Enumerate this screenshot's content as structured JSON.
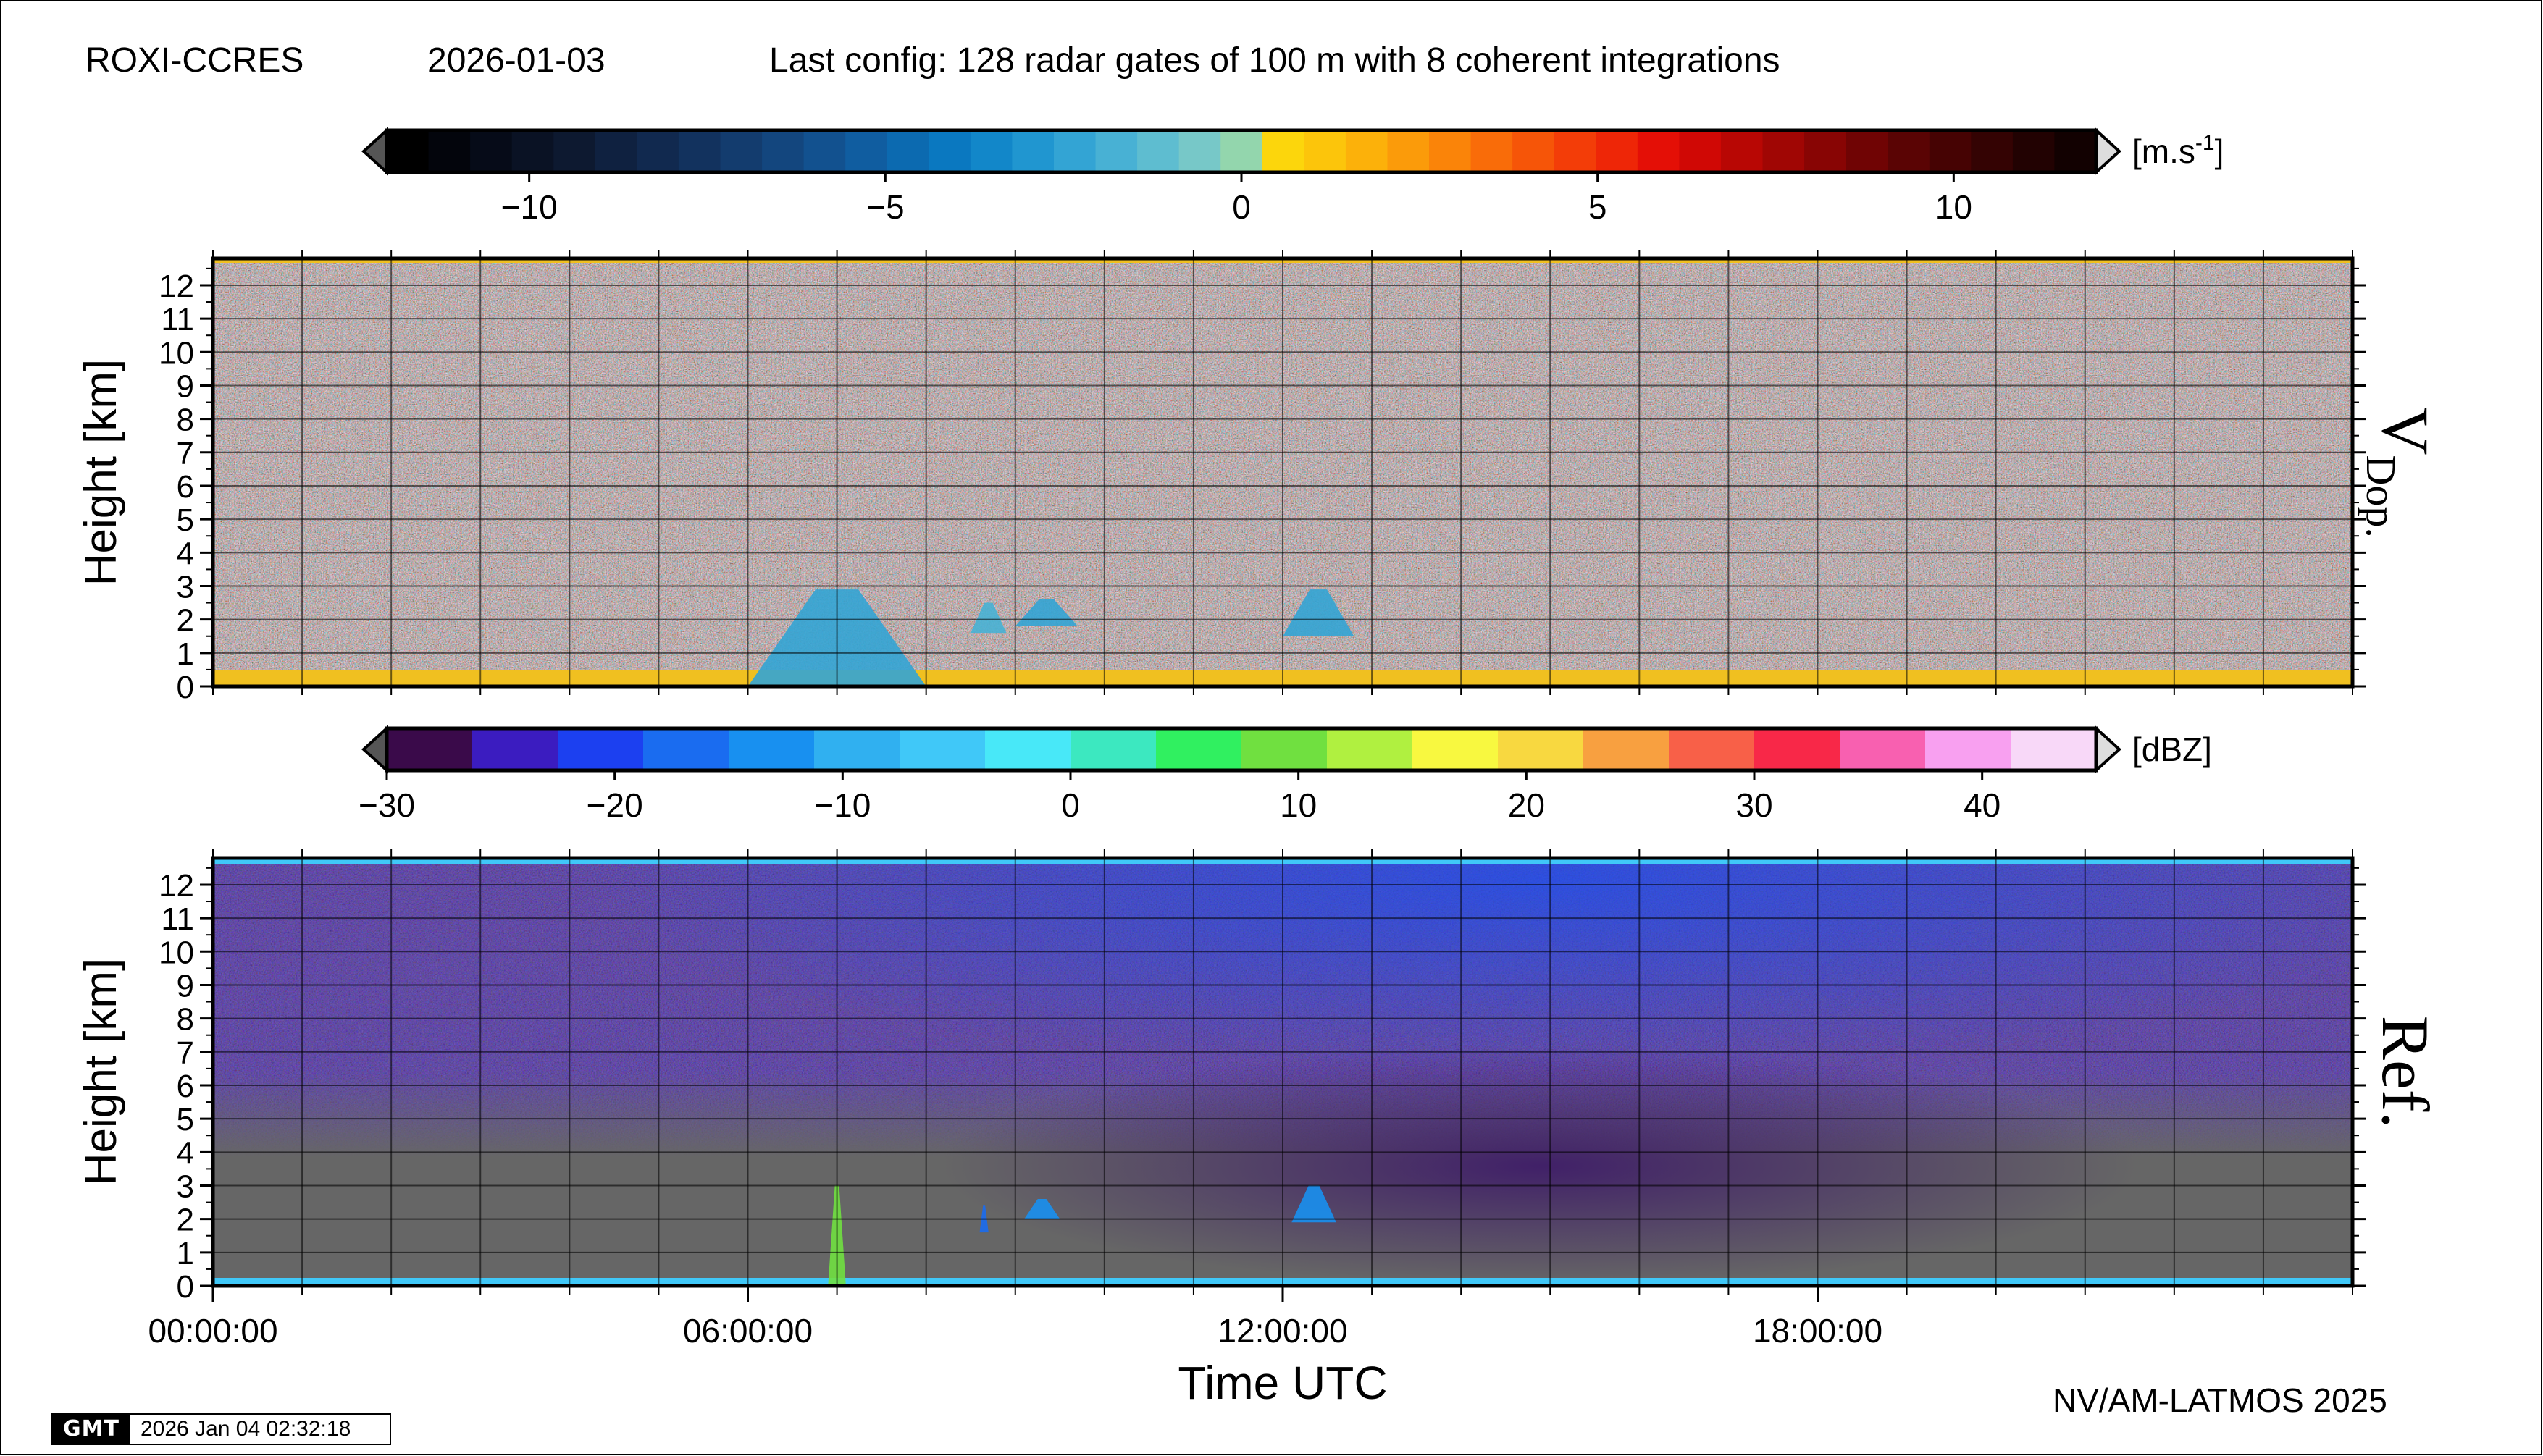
{
  "header": {
    "station": "ROXI-CCRES",
    "date": "2026-01-03",
    "config": "Last config: 128 radar gates of 100 m with 8 coherent integrations"
  },
  "footer": {
    "credit": "NV/AM-LATMOS 2025",
    "gmt_logo": "GMT",
    "gmt_timestamp": "2026 Jan 04 02:32:18"
  },
  "colors": {
    "doppler_background": "#8a5a38",
    "reflectivity_background": "#666666",
    "grid": "#000000"
  },
  "chart_data": [
    {
      "type": "heatmap",
      "title": "",
      "panel_label_main": "V",
      "panel_label_sub": "Dop.",
      "xlabel": "",
      "ylabel": "Height [km]",
      "xlim": [
        0,
        24
      ],
      "ylim": [
        0,
        12.8
      ],
      "y_ticks": [
        0,
        1,
        2,
        3,
        4,
        5,
        6,
        7,
        8,
        9,
        10,
        11,
        12
      ],
      "colorbar": {
        "unit": "[m.s-1]",
        "unit_base": "[m.s",
        "unit_sup": "-1",
        "unit_close": "]",
        "range": [
          -12,
          12
        ],
        "tick_values": [
          -10,
          -5,
          0,
          5,
          10
        ],
        "tick_labels": [
          "−10",
          "−5",
          "0",
          "5",
          "10"
        ],
        "colors": [
          "#000000",
          "#03050c",
          "#060b18",
          "#0a1224",
          "#0d1930",
          "#0f2140",
          "#11294f",
          "#12325e",
          "#133c6e",
          "#13467e",
          "#12518f",
          "#105da0",
          "#0c6ab0",
          "#0a78c0",
          "#1287c9",
          "#2096d0",
          "#33a4d4",
          "#48b1d4",
          "#5ebdd0",
          "#77c8c8",
          "#93d6ad",
          "#fcd60c",
          "#fcc50b",
          "#fcb10a",
          "#fb9b0a",
          "#fa8409",
          "#f96c09",
          "#f65508",
          "#f33d08",
          "#ee2607",
          "#e40f06",
          "#d00805",
          "#b80704",
          "#a00604",
          "#880504",
          "#700404",
          "#5a0404",
          "#460303",
          "#340303",
          "#220202",
          "#120101"
        ]
      },
      "echoes": [
        {
          "t0": 6.0,
          "t1": 8.0,
          "z0": 0.0,
          "z1": 2.9,
          "value": -2.5
        },
        {
          "t0": 8.5,
          "t1": 8.9,
          "z0": 1.6,
          "z1": 2.5,
          "value": -2.0
        },
        {
          "t0": 9.0,
          "t1": 9.7,
          "z0": 1.8,
          "z1": 2.6,
          "value": -2.3
        },
        {
          "t0": 12.0,
          "t1": 12.8,
          "z0": 1.5,
          "z1": 2.9,
          "value": -2.2
        }
      ]
    },
    {
      "type": "heatmap",
      "title": "",
      "panel_label": "Ref.",
      "xlabel": "Time UTC",
      "ylabel": "Height [km]",
      "xlim": [
        0,
        24
      ],
      "ylim": [
        0,
        12.8
      ],
      "x_tick_values": [
        0,
        6,
        12,
        18
      ],
      "x_tick_labels": [
        "00:00:00",
        "06:00:00",
        "12:00:00",
        "18:00:00"
      ],
      "y_ticks": [
        0,
        1,
        2,
        3,
        4,
        5,
        6,
        7,
        8,
        9,
        10,
        11,
        12
      ],
      "colorbar": {
        "unit": "[dBZ]",
        "range": [
          -30,
          45
        ],
        "tick_values": [
          -30,
          -20,
          -10,
          0,
          10,
          20,
          30,
          40
        ],
        "tick_labels": [
          "−30",
          "−20",
          "−10",
          "0",
          "10",
          "20",
          "30",
          "40"
        ],
        "colors": [
          "#3a0a4a",
          "#3b1cc0",
          "#1c40f0",
          "#1a6cf0",
          "#1890f0",
          "#30b0f0",
          "#40c8f8",
          "#48e8f8",
          "#3ce8c0",
          "#30f060",
          "#70e040",
          "#b0f040",
          "#f8f840",
          "#f8d840",
          "#f8a040",
          "#f86048",
          "#f82848",
          "#f860b0",
          "#f8a0f0",
          "#f8d8f8"
        ]
      },
      "echoes": [
        {
          "t0": 6.9,
          "t1": 7.1,
          "z0": 0.0,
          "z1": 3.0,
          "value": 10
        },
        {
          "t0": 8.6,
          "t1": 8.7,
          "z0": 1.6,
          "z1": 2.4,
          "value": -18
        },
        {
          "t0": 9.1,
          "t1": 9.5,
          "z0": 2.0,
          "z1": 2.6,
          "value": -14
        },
        {
          "t0": 12.1,
          "t1": 12.6,
          "z0": 1.9,
          "z1": 3.0,
          "value": -12
        }
      ]
    }
  ]
}
